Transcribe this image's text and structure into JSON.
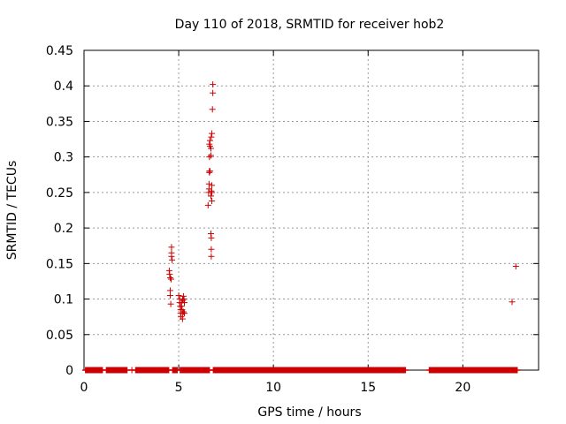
{
  "chart_data": {
    "type": "scatter",
    "title": "Day 110 of 2018, SRMTID for receiver hob2",
    "xlabel": "GPS time / hours",
    "ylabel": "SRMTID / TECUs",
    "xlim": [
      0,
      24
    ],
    "ylim": [
      0,
      0.45
    ],
    "xticks": [
      0,
      5,
      10,
      15,
      20
    ],
    "xtick_labels": [
      "0",
      "5",
      "10",
      "15",
      "20"
    ],
    "yticks": [
      0,
      0.05,
      0.1,
      0.15,
      0.2,
      0.25,
      0.3,
      0.35,
      0.4,
      0.45
    ],
    "ytick_labels": [
      "0",
      "0.05",
      "0.1",
      "0.15",
      "0.2",
      "0.25",
      "0.3",
      "0.35",
      "0.4",
      "0.45"
    ],
    "grid": true,
    "marker": "+",
    "color": "#cc0000",
    "zero_segments": [
      [
        0.05,
        1.0
      ],
      [
        1.15,
        2.3
      ],
      [
        2.5,
        2.55
      ],
      [
        2.7,
        4.5
      ],
      [
        4.65,
        4.95
      ],
      [
        5.05,
        6.65
      ],
      [
        6.8,
        17.0
      ],
      [
        18.2,
        22.9
      ]
    ],
    "points": [
      [
        4.5,
        0.14
      ],
      [
        4.52,
        0.135
      ],
      [
        4.55,
        0.13
      ],
      [
        4.6,
        0.128
      ],
      [
        4.55,
        0.112
      ],
      [
        4.55,
        0.105
      ],
      [
        4.58,
        0.093
      ],
      [
        4.62,
        0.173
      ],
      [
        4.62,
        0.165
      ],
      [
        4.62,
        0.16
      ],
      [
        4.65,
        0.155
      ],
      [
        5.0,
        0.105
      ],
      [
        5.05,
        0.1
      ],
      [
        5.05,
        0.095
      ],
      [
        5.08,
        0.09
      ],
      [
        5.1,
        0.085
      ],
      [
        5.1,
        0.08
      ],
      [
        5.12,
        0.075
      ],
      [
        5.15,
        0.095
      ],
      [
        5.15,
        0.09
      ],
      [
        5.18,
        0.085
      ],
      [
        5.2,
        0.08
      ],
      [
        5.2,
        0.1
      ],
      [
        5.22,
        0.098
      ],
      [
        5.25,
        0.104
      ],
      [
        5.28,
        0.1
      ],
      [
        5.3,
        0.095
      ],
      [
        5.3,
        0.08
      ],
      [
        5.25,
        0.082
      ],
      [
        5.2,
        0.072
      ],
      [
        6.55,
        0.232
      ],
      [
        6.58,
        0.25
      ],
      [
        6.6,
        0.255
      ],
      [
        6.6,
        0.262
      ],
      [
        6.62,
        0.278
      ],
      [
        6.62,
        0.28
      ],
      [
        6.65,
        0.28
      ],
      [
        6.62,
        0.3
      ],
      [
        6.62,
        0.318
      ],
      [
        6.65,
        0.323
      ],
      [
        6.65,
        0.315
      ],
      [
        6.7,
        0.302
      ],
      [
        6.7,
        0.312
      ],
      [
        6.72,
        0.328
      ],
      [
        6.75,
        0.333
      ],
      [
        6.7,
        0.245
      ],
      [
        6.72,
        0.252
      ],
      [
        6.75,
        0.26
      ],
      [
        6.75,
        0.25
      ],
      [
        6.75,
        0.238
      ],
      [
        6.7,
        0.192
      ],
      [
        6.72,
        0.186
      ],
      [
        6.72,
        0.17
      ],
      [
        6.72,
        0.16
      ],
      [
        6.78,
        0.367
      ],
      [
        6.8,
        0.39
      ],
      [
        6.8,
        0.402
      ],
      [
        22.6,
        0.096
      ],
      [
        22.8,
        0.146
      ]
    ]
  }
}
